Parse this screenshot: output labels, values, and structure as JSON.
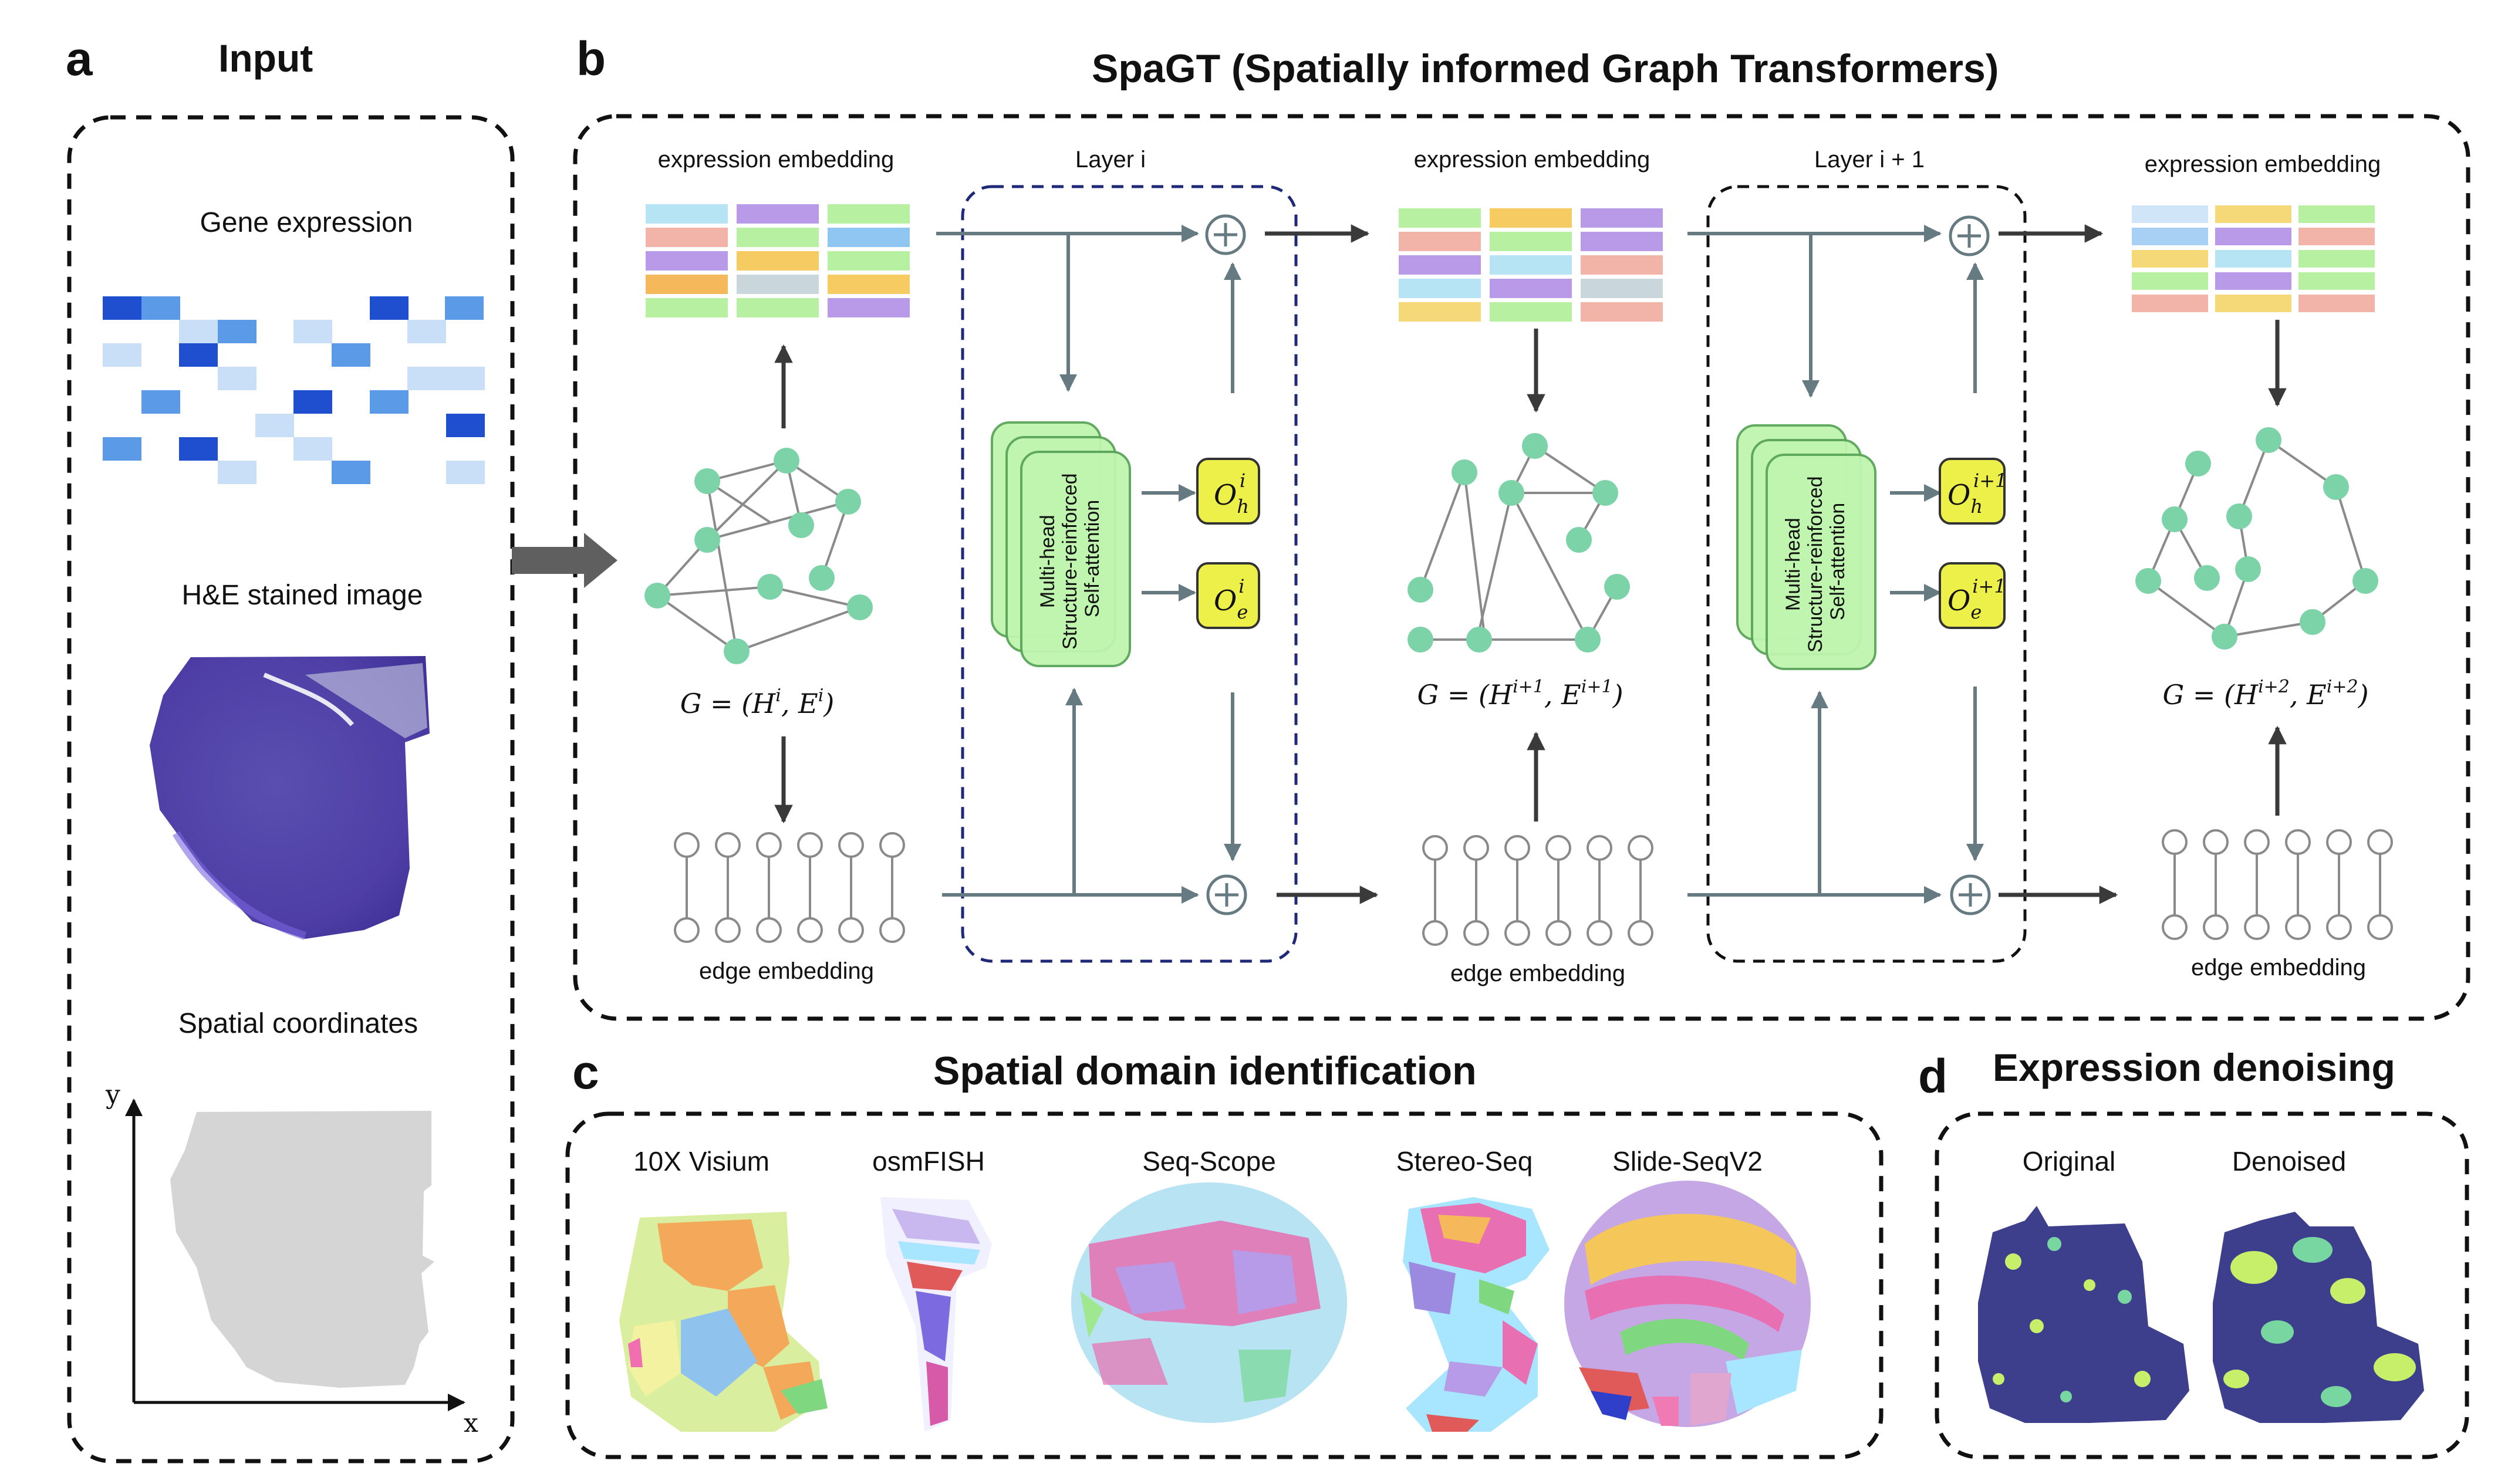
{
  "panels": {
    "a": {
      "letter": "a",
      "title": "Input"
    },
    "b": {
      "letter": "b",
      "title": "SpaGT (Spatially informed Graph Transformers)"
    },
    "c": {
      "letter": "c",
      "title": "Spatial domain identification"
    },
    "d": {
      "letter": "d",
      "title": "Expression denoising"
    }
  },
  "input": {
    "gene_expression": "Gene expression",
    "he_image": "H&E stained image",
    "spatial_coordinates": "Spatial coordinates",
    "axis_x": "x",
    "axis_y": "y"
  },
  "model": {
    "expression_embedding": "expression embedding",
    "edge_embedding": "edge embedding",
    "layer_i": "Layer i",
    "layer_i1": "Layer i + 1",
    "attention_line1": "Multi-head",
    "attention_line2": "Structure-reinforced",
    "attention_line3": "Self-attention",
    "graph_i": {
      "prefix": "G = (H",
      "sup1": "i",
      "mid": ", E",
      "sup2": "i",
      "suffix": ")"
    },
    "graph_i1": {
      "prefix": "G = (H",
      "sup1": "i+1",
      "mid": ", E",
      "sup2": "i+1",
      "suffix": ")"
    },
    "graph_i2": {
      "prefix": "G = (H",
      "sup1": "i+2",
      "mid": ", E",
      "sup2": "i+2",
      "suffix": ")"
    },
    "out_h": {
      "base": "O",
      "sub": "h",
      "sup": "i"
    },
    "out_e": {
      "base": "O",
      "sub": "e",
      "sup": "i"
    },
    "out_h1": {
      "base": "O",
      "sub": "h",
      "sup": "i+1"
    },
    "out_e1": {
      "base": "O",
      "sub": "e",
      "sup": "i+1"
    },
    "plus": "+"
  },
  "domains": {
    "visium": "10X Visium",
    "osmfish": "osmFISH",
    "seqscope": "Seq-Scope",
    "stereoseq": "Stereo-Seq",
    "slideseq": "Slide-SeqV2"
  },
  "denoise": {
    "original": "Original",
    "denoised": "Denoised"
  },
  "colors": {
    "node": "#7dd3a8",
    "flow_arrow": "#667a82",
    "attention_block": "#bff5ae",
    "output_box": "#eef04a",
    "heatmap_dark": "#1f4fcf",
    "heatmap_mid": "#5b9ae6",
    "heatmap_light": "#c9def7"
  }
}
